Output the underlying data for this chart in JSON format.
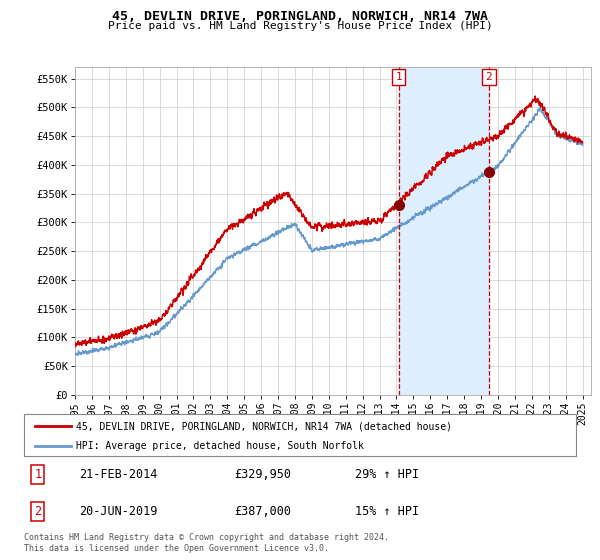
{
  "title": "45, DEVLIN DRIVE, PORINGLAND, NORWICH, NR14 7WA",
  "subtitle": "Price paid vs. HM Land Registry's House Price Index (HPI)",
  "ylabel_ticks": [
    "£0",
    "£50K",
    "£100K",
    "£150K",
    "£200K",
    "£250K",
    "£300K",
    "£350K",
    "£400K",
    "£450K",
    "£500K",
    "£550K"
  ],
  "ytick_values": [
    0,
    50000,
    100000,
    150000,
    200000,
    250000,
    300000,
    350000,
    400000,
    450000,
    500000,
    550000
  ],
  "ylim": [
    0,
    570000
  ],
  "xlim_start": 1995.0,
  "xlim_end": 2025.5,
  "purchase1_x": 2014.13,
  "purchase1_y": 329950,
  "purchase1_label": "1",
  "purchase1_date": "21-FEB-2014",
  "purchase1_price": "£329,950",
  "purchase1_hpi": "29% ↑ HPI",
  "purchase2_x": 2019.46,
  "purchase2_y": 387000,
  "purchase2_label": "2",
  "purchase2_date": "20-JUN-2019",
  "purchase2_price": "£387,000",
  "purchase2_hpi": "15% ↑ HPI",
  "line1_color": "#cc0000",
  "line2_color": "#6699cc",
  "shade_color": "#ddeeff",
  "marker_color": "#880000",
  "vline_color": "#cc0000",
  "legend1_label": "45, DEVLIN DRIVE, PORINGLAND, NORWICH, NR14 7WA (detached house)",
  "legend2_label": "HPI: Average price, detached house, South Norfolk",
  "footer": "Contains HM Land Registry data © Crown copyright and database right 2024.\nThis data is licensed under the Open Government Licence v3.0.",
  "background_color": "#ffffff",
  "plot_bg_color": "#ffffff",
  "grid_color": "#cccccc",
  "xtick_years": [
    1995,
    1996,
    1997,
    1998,
    1999,
    2000,
    2001,
    2002,
    2003,
    2004,
    2005,
    2006,
    2007,
    2008,
    2009,
    2010,
    2011,
    2012,
    2013,
    2014,
    2015,
    2016,
    2017,
    2018,
    2019,
    2020,
    2021,
    2022,
    2023,
    2024,
    2025
  ]
}
